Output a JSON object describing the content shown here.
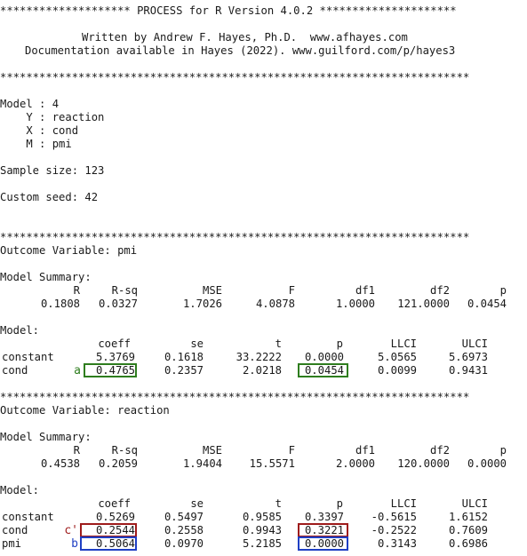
{
  "header": {
    "banner": "******************** PROCESS for R Version 4.0.2 *********************",
    "author": "Written by Andrew F. Hayes, Ph.D.  www.afhayes.com",
    "docs": "Documentation available in Hayes (2022). www.guilford.com/p/hayes3",
    "sep": "************************************************************************"
  },
  "model_info": {
    "model": "Model : 4",
    "y": "    Y : reaction",
    "x": "    X : cond",
    "m": "    M : pmi",
    "sample_size": "Sample size: 123",
    "seed": "Custom seed: 42"
  },
  "outcome1": {
    "title": "Outcome Variable: pmi",
    "summary_label": "Model Summary:",
    "summary_headers": [
      "R",
      "R-sq",
      "MSE",
      "F",
      "df1",
      "df2",
      "p"
    ],
    "summary_values": [
      "0.1808",
      "0.0327",
      "1.7026",
      "4.0878",
      "1.0000",
      "121.0000",
      "0.0454"
    ],
    "model_label": "Model:",
    "coef_headers": [
      "coeff",
      "se",
      "t",
      "p",
      "LLCI",
      "ULCI"
    ],
    "rows": [
      {
        "name": "constant",
        "values": [
          "5.3769",
          "0.1618",
          "33.2222",
          "0.0000",
          "5.0565",
          "5.6973"
        ]
      },
      {
        "name": "cond",
        "values": [
          "0.4765",
          "0.2357",
          "2.0218",
          "0.0454",
          "0.0099",
          "0.9431"
        ]
      }
    ]
  },
  "outcome2": {
    "title": "Outcome Variable: reaction",
    "summary_label": "Model Summary:",
    "summary_headers": [
      "R",
      "R-sq",
      "MSE",
      "F",
      "df1",
      "df2",
      "p"
    ],
    "summary_values": [
      "0.4538",
      "0.2059",
      "1.9404",
      "15.5571",
      "2.0000",
      "120.0000",
      "0.0000"
    ],
    "model_label": "Model:",
    "coef_headers": [
      "coeff",
      "se",
      "t",
      "p",
      "LLCI",
      "ULCI"
    ],
    "rows": [
      {
        "name": "constant",
        "values": [
          "0.5269",
          "0.5497",
          "0.9585",
          "0.3397",
          "-0.5615",
          "1.6152"
        ]
      },
      {
        "name": "cond",
        "values": [
          "0.2544",
          "0.2558",
          "0.9943",
          "0.3221",
          "-0.2522",
          "0.7609"
        ]
      },
      {
        "name": "pmi",
        "values": [
          "0.5064",
          "0.0970",
          "5.2185",
          "0.0000",
          "0.3143",
          "0.6986"
        ]
      }
    ]
  },
  "annotations": {
    "a": "a",
    "c_prime": "c'",
    "b": "b",
    "colors": {
      "a": "#2e7d1e",
      "c_prime": "#9e1b1b",
      "b": "#1f3fc4"
    }
  }
}
